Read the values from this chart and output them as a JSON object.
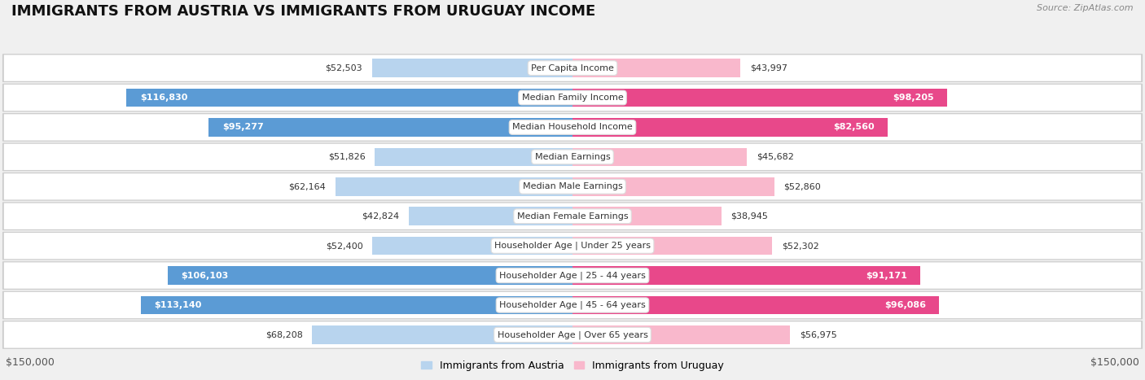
{
  "title": "IMMIGRANTS FROM AUSTRIA VS IMMIGRANTS FROM URUGUAY INCOME",
  "source": "Source: ZipAtlas.com",
  "categories": [
    "Per Capita Income",
    "Median Family Income",
    "Median Household Income",
    "Median Earnings",
    "Median Male Earnings",
    "Median Female Earnings",
    "Householder Age | Under 25 years",
    "Householder Age | 25 - 44 years",
    "Householder Age | 45 - 64 years",
    "Householder Age | Over 65 years"
  ],
  "austria_values": [
    52503,
    116830,
    95277,
    51826,
    62164,
    42824,
    52400,
    106103,
    113140,
    68208
  ],
  "uruguay_values": [
    43997,
    98205,
    82560,
    45682,
    52860,
    38945,
    52302,
    91171,
    96086,
    56975
  ],
  "austria_color_light": "#b8d4ee",
  "austria_color_dark": "#5b9bd5",
  "uruguay_color_light": "#f9b8cc",
  "uruguay_color_dark": "#e8488a",
  "austria_label": "Immigrants from Austria",
  "uruguay_label": "Immigrants from Uruguay",
  "max_value": 150000,
  "background_color": "#f0f0f0",
  "row_bg_color": "#e8e8e8",
  "title_fontsize": 13,
  "axis_fontsize": 9,
  "bar_label_fontsize": 8,
  "category_fontsize": 8,
  "dark_threshold": 75000
}
